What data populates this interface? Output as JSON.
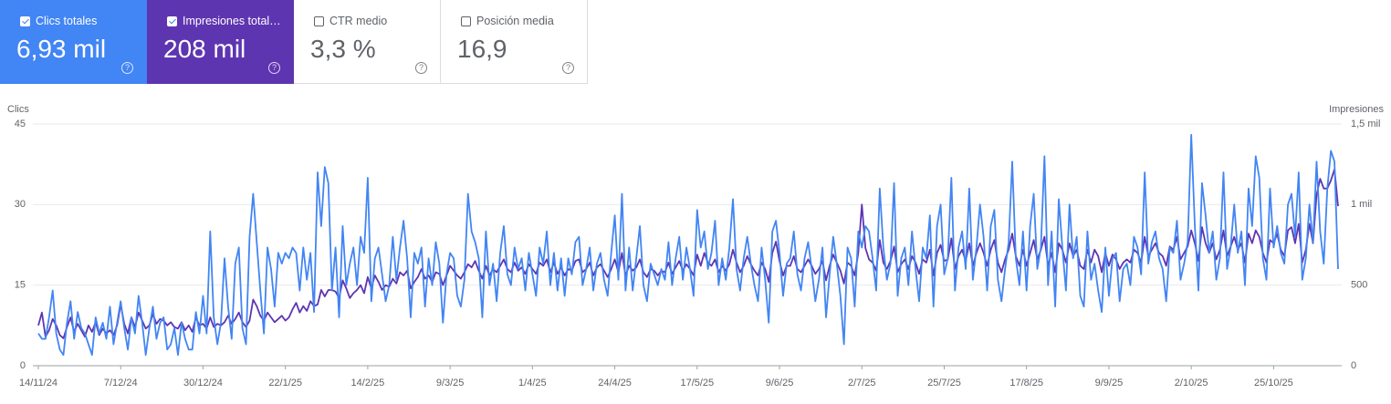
{
  "metrics": [
    {
      "label": "Clics totales",
      "value": "6,93 mil",
      "checked": true,
      "color": "#4285f4"
    },
    {
      "label": "Impresiones total…",
      "value": "208 mil",
      "checked": true,
      "color": "#5e35b1"
    },
    {
      "label": "CTR medio",
      "value": "3,3 %",
      "checked": false
    },
    {
      "label": "Posición media",
      "value": "16,9",
      "checked": false
    }
  ],
  "chart_data": {
    "type": "line",
    "y_label": "Clics",
    "y2_label": "Impresiones",
    "ylim": [
      0,
      45
    ],
    "yticks": [
      0,
      15,
      30,
      45
    ],
    "y2lim": [
      0,
      1500
    ],
    "y2ticks": [
      0,
      500,
      {
        "value": 1000,
        "label": "1 mil"
      },
      {
        "value": 1500,
        "label": "1,5 mil"
      }
    ],
    "grid": true,
    "categories": [
      "14/11/24",
      null,
      null,
      null,
      null,
      null,
      null,
      null,
      null,
      null,
      null,
      null,
      null,
      null,
      null,
      null,
      null,
      null,
      null,
      null,
      null,
      null,
      null,
      "7/12/24",
      null,
      null,
      null,
      null,
      null,
      null,
      null,
      null,
      null,
      null,
      null,
      null,
      null,
      null,
      null,
      null,
      null,
      null,
      null,
      null,
      null,
      null,
      "30/12/24",
      null,
      null,
      null,
      null,
      null,
      null,
      null,
      null,
      null,
      null,
      null,
      null,
      null,
      null,
      null,
      null,
      null,
      null,
      null,
      null,
      null,
      null,
      "22/1/25",
      null,
      null,
      null,
      null,
      null,
      null,
      null,
      null,
      null,
      null,
      null,
      null,
      null,
      null,
      null,
      null,
      null,
      null,
      null,
      null,
      null,
      null,
      "14/2/25",
      null,
      null,
      null,
      null,
      null,
      null,
      null,
      null,
      null,
      null,
      null,
      null,
      null,
      null,
      null,
      null,
      null,
      null,
      null,
      null,
      null,
      null,
      "9/3/25",
      null,
      null,
      null,
      null,
      null,
      null,
      null,
      null,
      null,
      null,
      null,
      null,
      null,
      null,
      null,
      null,
      null,
      null,
      null,
      null,
      null,
      null,
      "1/4/25",
      null,
      null,
      null,
      null,
      null,
      null,
      null,
      null,
      null,
      null,
      null,
      null,
      null,
      null,
      null,
      null,
      null,
      null,
      null,
      null,
      null,
      null,
      "24/4/25",
      null,
      null,
      null,
      null,
      null,
      null,
      null,
      null,
      null,
      null,
      null,
      null,
      null,
      null,
      null,
      null,
      null,
      null,
      null,
      null,
      null,
      null,
      "17/5/25",
      null,
      null,
      null,
      null,
      null,
      null,
      null,
      null,
      null,
      null,
      null,
      null,
      null,
      null,
      null,
      null,
      null,
      null,
      null,
      null,
      null,
      null,
      "9/6/25",
      null,
      null,
      null,
      null,
      null,
      null,
      null,
      null,
      null,
      null,
      null,
      null,
      null,
      null,
      null,
      null,
      null,
      null,
      null,
      null,
      null,
      null,
      "2/7/25",
      null,
      null,
      null,
      null,
      null,
      null,
      null,
      null,
      null,
      null,
      null,
      null,
      null,
      null,
      null,
      null,
      null,
      null,
      null,
      null,
      null,
      null,
      "25/7/25",
      null,
      null,
      null,
      null,
      null,
      null,
      null,
      null,
      null,
      null,
      null,
      null,
      null,
      null,
      null,
      null,
      null,
      null,
      null,
      null,
      null,
      null,
      "17/8/25",
      null,
      null,
      null,
      null,
      null,
      null,
      null,
      null,
      null,
      null,
      null,
      null,
      null,
      null,
      null,
      null,
      null,
      null,
      null,
      null,
      null,
      null,
      "9/9/25",
      null,
      null,
      null,
      null,
      null,
      null,
      null,
      null,
      null,
      null,
      null,
      null,
      null,
      null,
      null,
      null,
      null,
      null,
      null,
      null,
      null,
      null,
      "2/10/25",
      null,
      null,
      null,
      null,
      null,
      null,
      null,
      null,
      null,
      null,
      null,
      null,
      null,
      null,
      null,
      null,
      null,
      null,
      null,
      null,
      null,
      null,
      "25/10/25",
      null,
      null,
      null,
      null,
      null,
      null,
      null,
      null,
      null,
      null,
      null,
      null,
      null,
      null,
      null,
      null,
      null,
      null
    ],
    "series": [
      {
        "name": "Impresiones",
        "color": "#5e35b1",
        "axis": "y2",
        "values": [
          250,
          330,
          180,
          220,
          290,
          250,
          190,
          170,
          240,
          300,
          210,
          260,
          220,
          180,
          250,
          210,
          270,
          190,
          230,
          200,
          220,
          190,
          250,
          380,
          260,
          200,
          300,
          240,
          330,
          280,
          230,
          250,
          320,
          260,
          290,
          280,
          250,
          270,
          240,
          230,
          270,
          220,
          250,
          210,
          300,
          250,
          260,
          230,
          300,
          240,
          260,
          250,
          270,
          310,
          260,
          290,
          330,
          270,
          240,
          280,
          410,
          370,
          310,
          280,
          330,
          300,
          270,
          290,
          310,
          280,
          300,
          350,
          390,
          330,
          370,
          340,
          400,
          370,
          380,
          470,
          430,
          470,
          470,
          460,
          420,
          530,
          480,
          420,
          450,
          470,
          500,
          450,
          550,
          480,
          560,
          520,
          470,
          500,
          490,
          540,
          510,
          580,
          560,
          590,
          480,
          520,
          550,
          600,
          540,
          560,
          520,
          580,
          570,
          500,
          560,
          620,
          590,
          560,
          540,
          580,
          630,
          610,
          650,
          590,
          540,
          620,
          560,
          600,
          580,
          620,
          660,
          600,
          580,
          640,
          590,
          610,
          570,
          630,
          600,
          570,
          640,
          620,
          660,
          580,
          640,
          570,
          610,
          560,
          600,
          590,
          650,
          660,
          580,
          600,
          640,
          560,
          610,
          630,
          590,
          550,
          600,
          660,
          580,
          700,
          560,
          620,
          590,
          610,
          660,
          580,
          550,
          600,
          590,
          560,
          590,
          580,
          640,
          570,
          610,
          650,
          590,
          630,
          600,
          560,
          690,
          620,
          700,
          640,
          620,
          660,
          580,
          620,
          590,
          630,
          720,
          640,
          580,
          620,
          680,
          630,
          590,
          560,
          640,
          600,
          520,
          700,
          770,
          650,
          560,
          620,
          620,
          680,
          600,
          580,
          620,
          660,
          620,
          570,
          600,
          650,
          530,
          620,
          690,
          640,
          590,
          510,
          640,
          620,
          560,
          700,
          1000,
          730,
          660,
          640,
          590,
          780,
          640,
          600,
          650,
          740,
          580,
          630,
          660,
          600,
          680,
          640,
          570,
          660,
          640,
          720,
          560,
          700,
          750,
          650,
          660,
          790,
          600,
          680,
          720,
          650,
          760,
          620,
          700,
          760,
          700,
          620,
          720,
          780,
          640,
          580,
          660,
          720,
          820,
          680,
          620,
          720,
          620,
          700,
          780,
          660,
          720,
          800,
          620,
          700,
          580,
          760,
          720,
          640,
          760,
          680,
          720,
          620,
          600,
          720,
          640,
          720,
          680,
          580,
          700,
          620,
          690,
          660,
          600,
          640,
          660,
          640,
          720,
          700,
          640,
          800,
          680,
          720,
          760,
          700,
          680,
          620,
          740,
          720,
          800,
          660,
          700,
          740,
          840,
          760,
          650,
          860,
          760,
          700,
          760,
          660,
          720,
          840,
          680,
          740,
          800,
          720,
          760,
          640,
          820,
          760,
          840,
          800,
          700,
          640,
          780,
          760,
          820,
          720,
          680,
          840,
          860,
          760,
          880,
          640,
          720,
          880,
          760,
          1060,
          1160,
          1100,
          1100,
          1150,
          1220,
          990
        ]
      },
      {
        "name": "Clics",
        "color": "#4285f4",
        "values": [
          6,
          5,
          5,
          9,
          14,
          6,
          3,
          2,
          8,
          12,
          5,
          10,
          7,
          6,
          4,
          2,
          9,
          6,
          8,
          5,
          11,
          4,
          8,
          12,
          7,
          3,
          9,
          6,
          13,
          8,
          2,
          7,
          11,
          5,
          8,
          9,
          3,
          4,
          7,
          2,
          8,
          5,
          3,
          3,
          10,
          6,
          13,
          6,
          25,
          9,
          4,
          8,
          20,
          11,
          5,
          19,
          22,
          7,
          4,
          24,
          32,
          23,
          14,
          6,
          22,
          18,
          11,
          21,
          19,
          21,
          20,
          22,
          21,
          14,
          22,
          16,
          21,
          10,
          36,
          26,
          37,
          34,
          14,
          22,
          9,
          26,
          15,
          19,
          22,
          15,
          24,
          21,
          35,
          12,
          20,
          22,
          17,
          12,
          15,
          24,
          16,
          22,
          27,
          20,
          9,
          21,
          19,
          22,
          11,
          20,
          15,
          23,
          19,
          8,
          17,
          21,
          20,
          13,
          11,
          16,
          32,
          25,
          23,
          20,
          9,
          25,
          15,
          19,
          12,
          21,
          26,
          17,
          15,
          22,
          18,
          20,
          14,
          21,
          17,
          13,
          22,
          19,
          25,
          15,
          21,
          14,
          20,
          13,
          20,
          17,
          23,
          24,
          15,
          18,
          22,
          14,
          19,
          21,
          16,
          13,
          21,
          28,
          16,
          32,
          14,
          22,
          14,
          20,
          26,
          15,
          12,
          19,
          17,
          15,
          18,
          16,
          23,
          15,
          20,
          24,
          16,
          22,
          18,
          13,
          29,
          22,
          25,
          18,
          21,
          27,
          15,
          20,
          16,
          22,
          31,
          18,
          14,
          20,
          24,
          19,
          15,
          12,
          22,
          16,
          8,
          25,
          27,
          21,
          13,
          19,
          20,
          25,
          17,
          14,
          20,
          23,
          18,
          12,
          16,
          22,
          9,
          17,
          24,
          19,
          13,
          4,
          22,
          20,
          11,
          25,
          22,
          26,
          25,
          20,
          14,
          33,
          22,
          16,
          19,
          34,
          13,
          20,
          22,
          15,
          25,
          18,
          12,
          22,
          20,
          28,
          11,
          26,
          30,
          17,
          20,
          35,
          14,
          22,
          25,
          18,
          33,
          16,
          22,
          30,
          24,
          14,
          26,
          29,
          16,
          12,
          18,
          23,
          38,
          20,
          15,
          25,
          14,
          26,
          32,
          18,
          22,
          39,
          15,
          25,
          11,
          31,
          22,
          14,
          30,
          20,
          24,
          13,
          11,
          25,
          16,
          19,
          14,
          10,
          22,
          13,
          20,
          21,
          12,
          18,
          19,
          15,
          24,
          22,
          17,
          36,
          19,
          23,
          25,
          20,
          18,
          12,
          22,
          21,
          27,
          16,
          19,
          23,
          43,
          26,
          14,
          34,
          28,
          21,
          25,
          16,
          20,
          36,
          18,
          22,
          30,
          21,
          25,
          15,
          33,
          26,
          39,
          35,
          20,
          16,
          33,
          22,
          26,
          21,
          19,
          30,
          32,
          24,
          36,
          16,
          20,
          30,
          23,
          38,
          25,
          19,
          33,
          40,
          38,
          18
        ]
      }
    ]
  }
}
